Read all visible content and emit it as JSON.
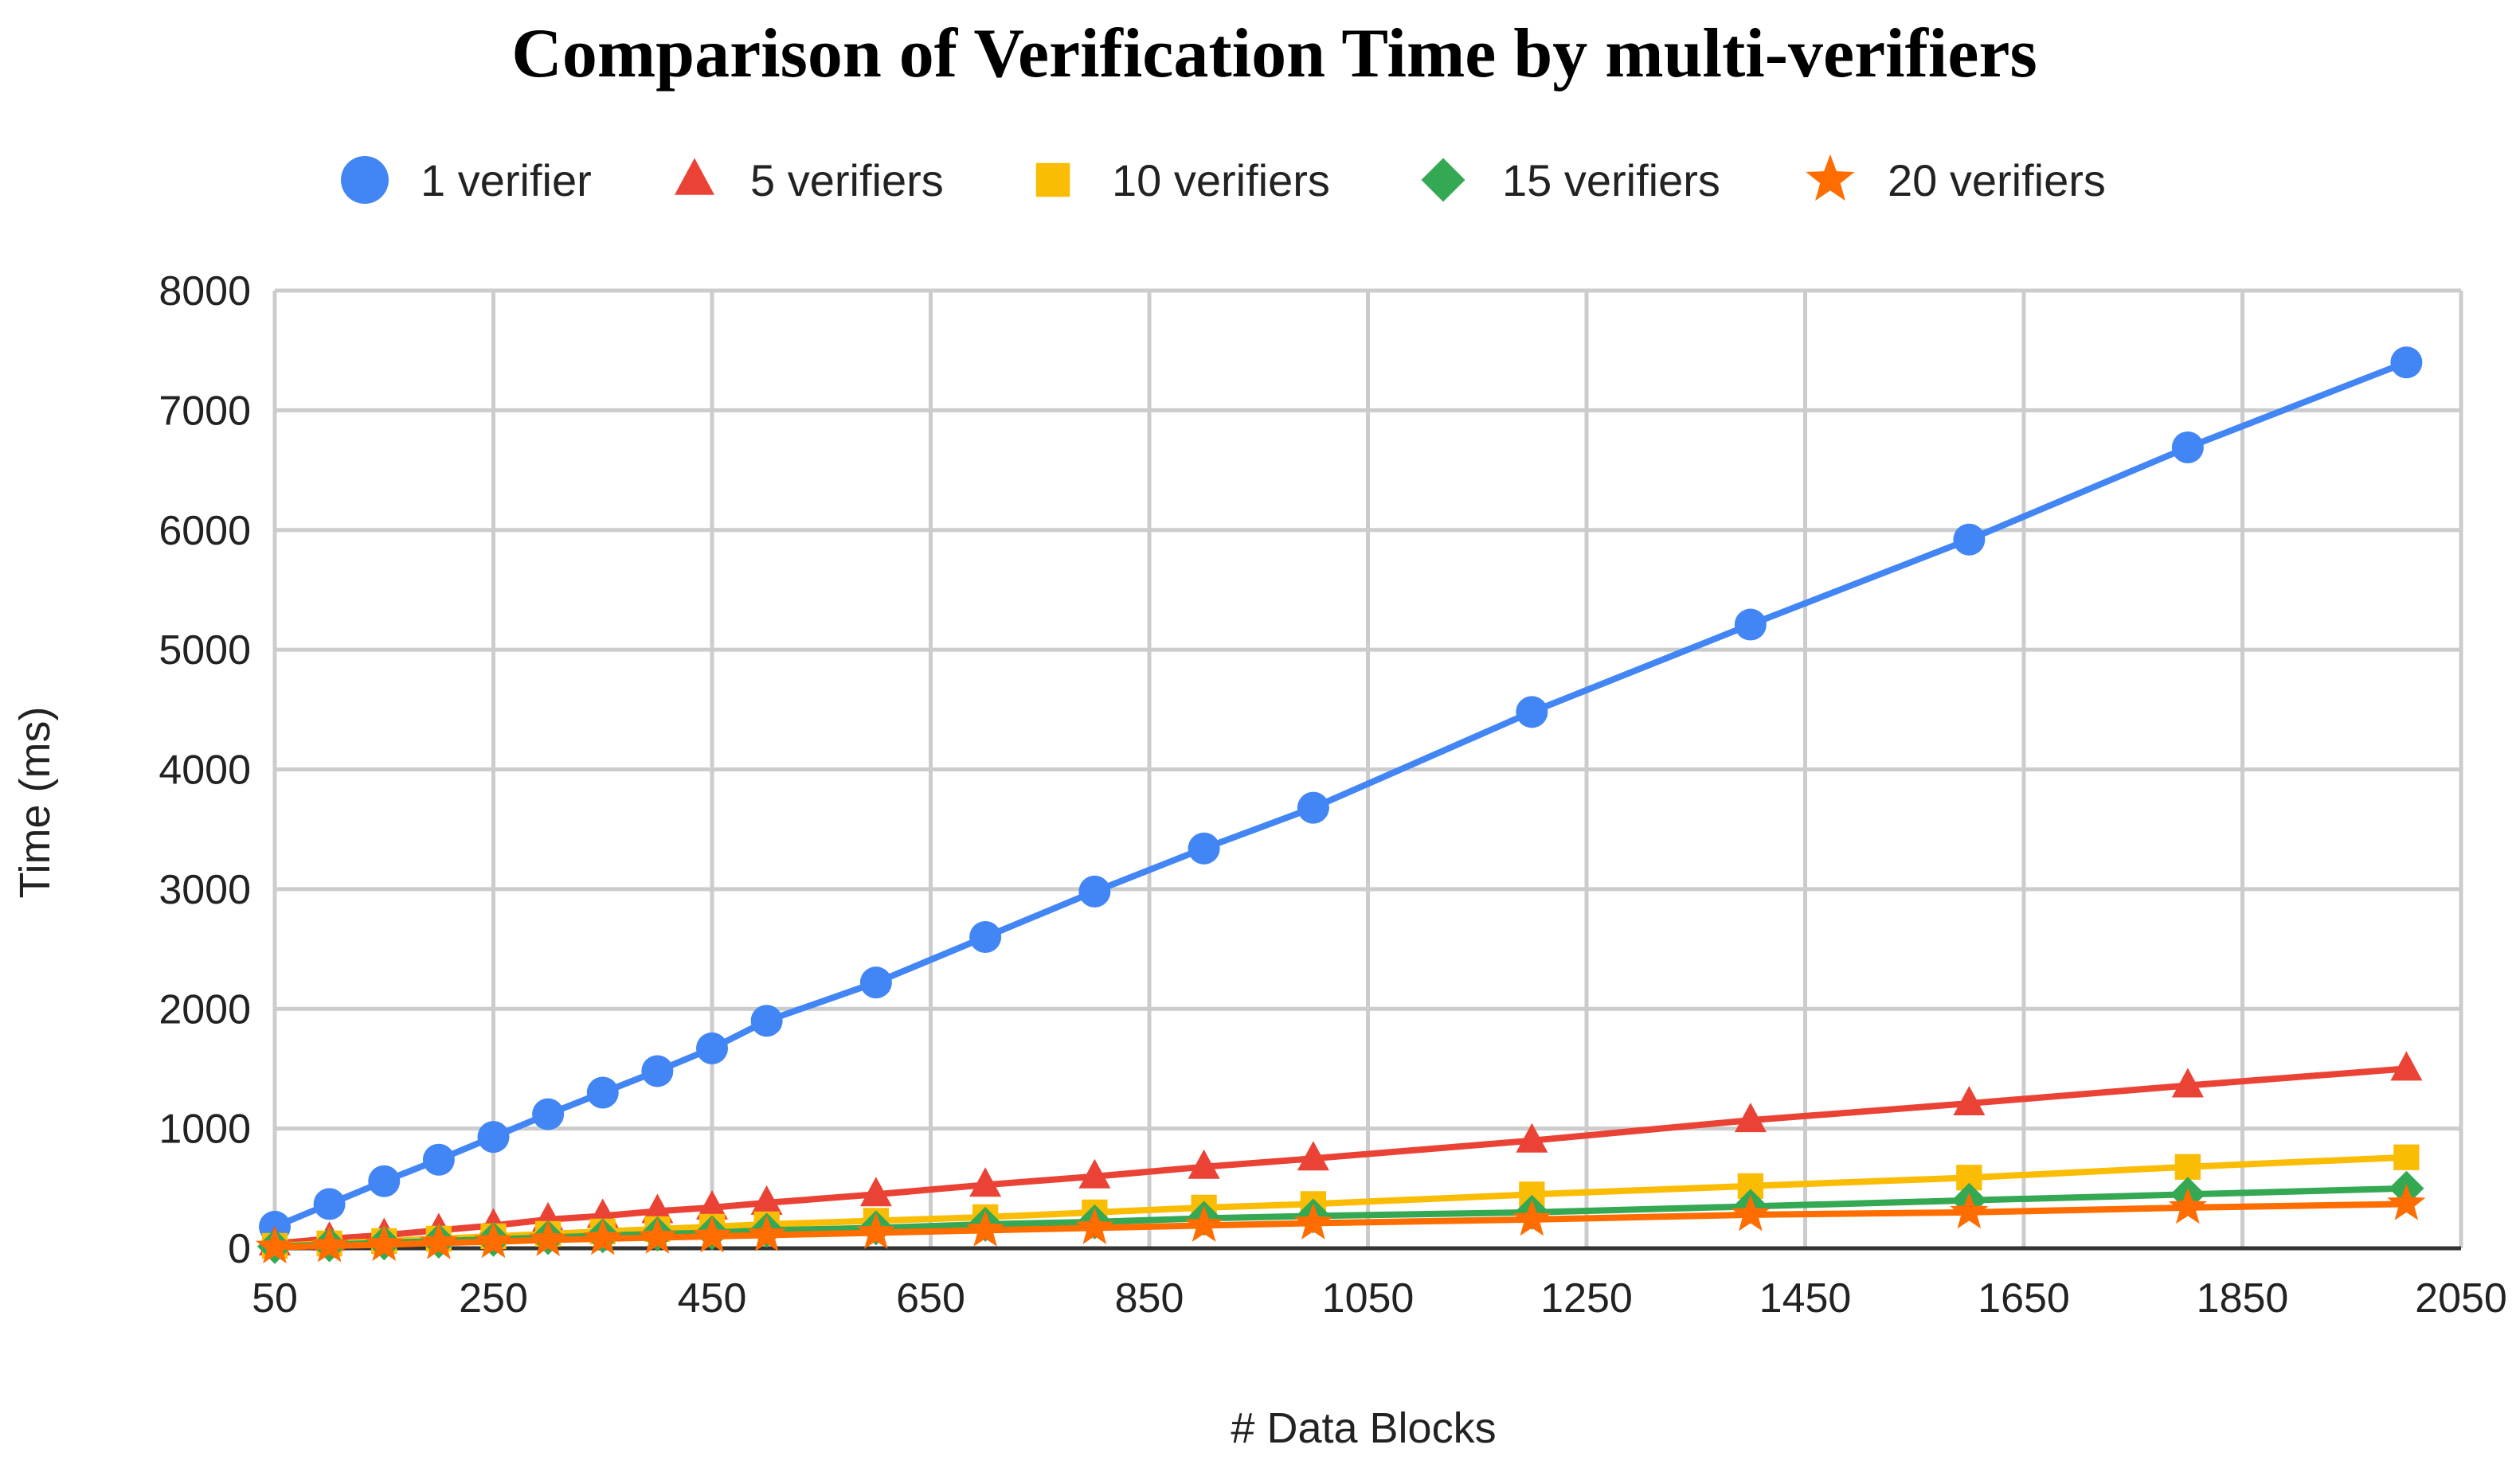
{
  "chart_data": {
    "type": "line",
    "title": "Comparison of Verification Time by multi-verifiers",
    "xlabel": "# Data Blocks",
    "ylabel": "Time (ms)",
    "xlim": [
      50,
      2050
    ],
    "ylim": [
      0,
      8000
    ],
    "x_ticks": [
      "50",
      "250",
      "450",
      "650",
      "850",
      "1050",
      "1250",
      "1450",
      "1650",
      "1850",
      "2050"
    ],
    "y_ticks": [
      "0",
      "1000",
      "2000",
      "3000",
      "4000",
      "5000",
      "6000",
      "7000",
      "8000"
    ],
    "grid": true,
    "legend_position": "top",
    "x": [
      50,
      100,
      150,
      200,
      250,
      300,
      350,
      400,
      450,
      500,
      600,
      700,
      800,
      900,
      1000,
      1200,
      1400,
      1600,
      1800,
      2000
    ],
    "series": [
      {
        "name": "1 verifier",
        "color": "#4285F4",
        "marker": "circle",
        "values": [
          180,
          370,
          560,
          740,
          930,
          1120,
          1300,
          1480,
          1670,
          1900,
          2220,
          2600,
          2980,
          3340,
          3680,
          4480,
          5210,
          5920,
          6690,
          7400
        ]
      },
      {
        "name": "5 verifiers",
        "color": "#EA4335",
        "marker": "triangle",
        "values": [
          40,
          80,
          110,
          150,
          190,
          240,
          270,
          310,
          340,
          380,
          450,
          530,
          600,
          680,
          750,
          900,
          1070,
          1210,
          1360,
          1500
        ]
      },
      {
        "name": "10 verifiers",
        "color": "#FBBC04",
        "marker": "square",
        "values": [
          20,
          40,
          60,
          80,
          100,
          120,
          140,
          160,
          180,
          200,
          230,
          260,
          300,
          340,
          370,
          450,
          520,
          590,
          680,
          760
        ]
      },
      {
        "name": "15 verifiers",
        "color": "#34A853",
        "marker": "diamond",
        "values": [
          15,
          30,
          45,
          60,
          75,
          90,
          105,
          120,
          130,
          150,
          170,
          200,
          220,
          250,
          270,
          300,
          350,
          400,
          450,
          500
        ]
      },
      {
        "name": "20 verifiers",
        "color": "#FF6D01",
        "marker": "star",
        "values": [
          10,
          20,
          30,
          45,
          55,
          70,
          80,
          90,
          100,
          110,
          130,
          150,
          170,
          190,
          210,
          240,
          280,
          300,
          340,
          370
        ]
      }
    ]
  }
}
